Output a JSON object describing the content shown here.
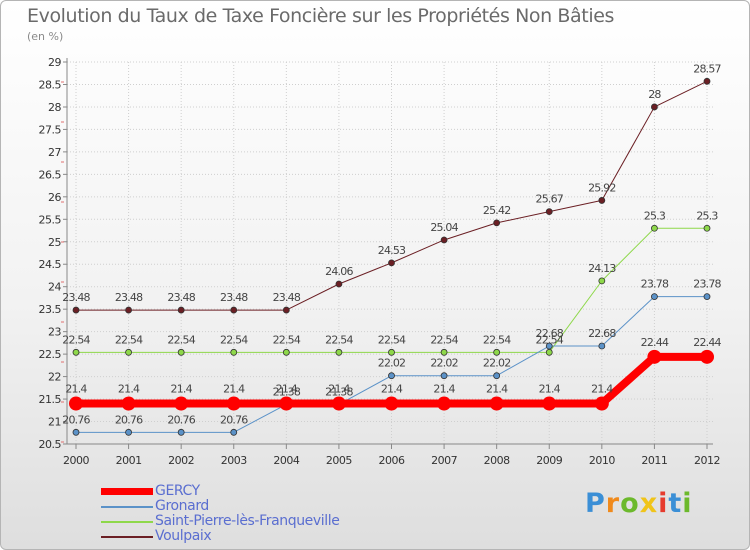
{
  "title": "Evolution du Taux de Taxe Foncière sur les Propriétés Non Bâties",
  "unit_label": "(en %)",
  "logo": {
    "text": "Proxiti",
    "letters": [
      "P",
      "r",
      "o",
      "x",
      "i",
      "t",
      "i"
    ],
    "colors": [
      "#3b8fd6",
      "#f08a1c",
      "#6cb92c",
      "#f0c419",
      "#e63b2e",
      "#3b8fd6",
      "#6cb92c"
    ]
  },
  "chart_data": {
    "type": "line",
    "x": [
      "2000",
      "2001",
      "2002",
      "2003",
      "2004",
      "2005",
      "2006",
      "2007",
      "2008",
      "2009",
      "2010",
      "2011",
      "2012"
    ],
    "ylim": [
      20.5,
      29
    ],
    "yticks": [
      "20.5",
      "21",
      "21.5",
      "22",
      "22.5",
      "23",
      "23.5",
      "24",
      "24.5",
      "25",
      "25.5",
      "26",
      "26.5",
      "27",
      "27.5",
      "28",
      "28.5",
      "29"
    ],
    "series": [
      {
        "name": "GERCY",
        "color": "#ff0000",
        "width": 8,
        "marker": 7,
        "labelOffset": -11,
        "values": [
          21.4,
          21.4,
          21.4,
          21.4,
          21.4,
          21.4,
          21.4,
          21.4,
          21.4,
          21.4,
          21.4,
          22.44,
          22.44
        ],
        "labels": [
          "21.4",
          "21.4",
          "21.4",
          "21.4",
          "21.4",
          "21.4",
          "21.4",
          "21.4",
          "21.4",
          "21.4",
          "21.4",
          "22.44",
          "22.44"
        ]
      },
      {
        "name": "Gronard",
        "color": "#5b92c8",
        "width": 1,
        "marker": 3,
        "labelOffset": -9,
        "values": [
          20.76,
          20.76,
          20.76,
          20.76,
          21.38,
          21.38,
          22.02,
          22.02,
          22.02,
          22.68,
          22.68,
          23.78,
          23.78
        ],
        "labels": [
          "20.76",
          "20.76",
          "20.76",
          "20.76",
          "21.38",
          "21.38",
          "22.02",
          "22.02",
          "22.02",
          "22.68",
          "22.68",
          "23.78",
          "23.78"
        ]
      },
      {
        "name": "Saint-Pierre-lès-Franqueville",
        "color": "#8ed84a",
        "width": 1,
        "marker": 3,
        "labelOffset": -9,
        "values": [
          22.54,
          22.54,
          22.54,
          22.54,
          22.54,
          22.54,
          22.54,
          22.54,
          22.54,
          22.54,
          24.13,
          25.3,
          25.3
        ],
        "labels": [
          "22.54",
          "22.54",
          "22.54",
          "22.54",
          "22.54",
          "22.54",
          "22.54",
          "22.54",
          "22.54",
          "22.54",
          "24.13",
          "25.3",
          "25.3"
        ]
      },
      {
        "name": "Voulpaix",
        "color": "#6b1f24",
        "width": 1,
        "marker": 3,
        "labelOffset": -9,
        "values": [
          23.48,
          23.48,
          23.48,
          23.48,
          23.48,
          24.06,
          24.53,
          25.04,
          25.42,
          25.67,
          25.92,
          28,
          28.57
        ],
        "labels": [
          "23.48",
          "23.48",
          "23.48",
          "23.48",
          "23.48",
          "24.06",
          "24.53",
          "25.04",
          "25.42",
          "25.67",
          "25.92",
          "28",
          "28.57"
        ]
      }
    ]
  }
}
